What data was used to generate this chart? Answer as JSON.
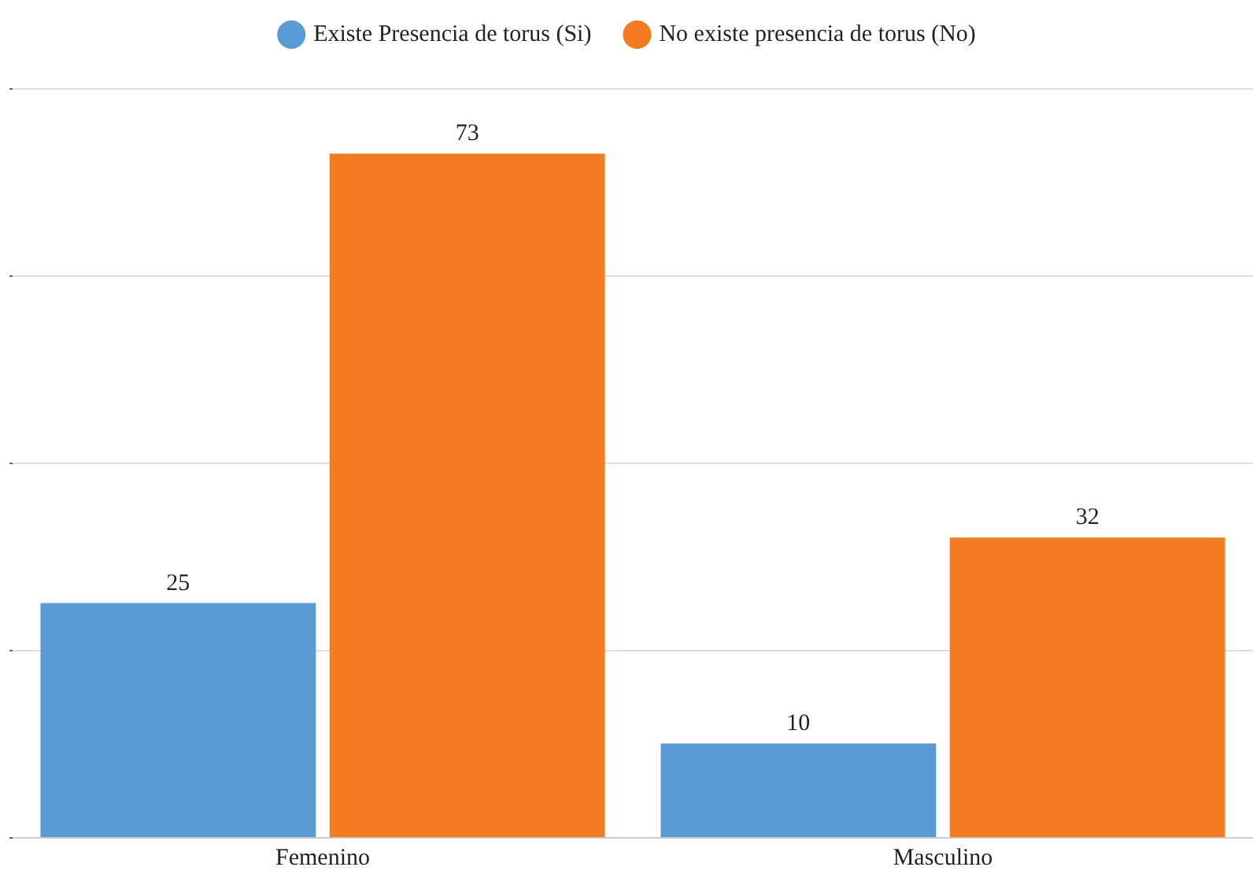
{
  "chart_data": {
    "type": "bar",
    "categories": [
      "Femenino",
      "Masculino"
    ],
    "series": [
      {
        "name": "Existe Presencia de torus (Si)",
        "color": "#5b9bd5",
        "values": [
          25,
          10
        ]
      },
      {
        "name": "No existe presencia de torus (No)",
        "color": "#f47b20",
        "values": [
          73,
          32
        ]
      }
    ],
    "ylim": [
      0,
      80
    ],
    "yticks": [
      {
        "value": 0,
        "label": null
      },
      {
        "value": 20,
        "label": null
      },
      {
        "value": 40,
        "label": null
      },
      {
        "value": 60,
        "label": null
      },
      {
        "value": 80,
        "label": null
      }
    ],
    "tick_labels": "x",
    "grid": "y",
    "legend": "top",
    "data_labels": true
  }
}
